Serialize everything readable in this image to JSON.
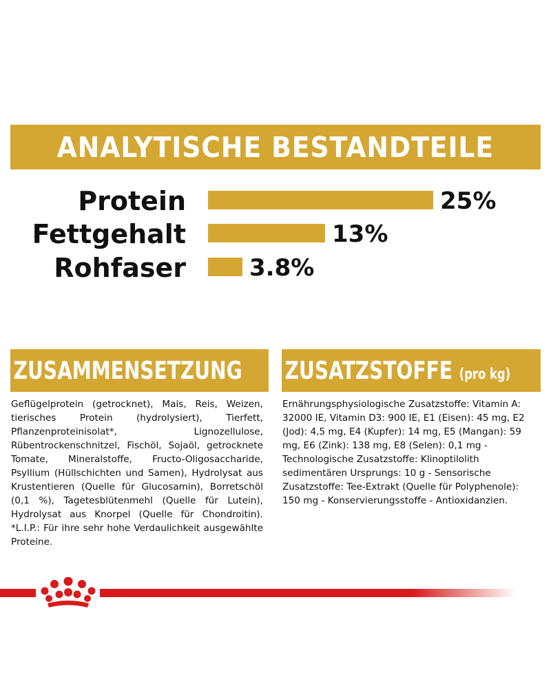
{
  "banner": {
    "title": "ANALYTISCHE BESTANDTEILE"
  },
  "chart_data": {
    "type": "bar",
    "orientation": "horizontal",
    "title": "ANALYTISCHE BESTANDTEILE",
    "categories": [
      "Protein",
      "Fettgehalt",
      "Rohfaser"
    ],
    "values": [
      25,
      13,
      3.8
    ],
    "value_labels": [
      "25%",
      "13%",
      "3.8%"
    ],
    "unit": "%",
    "xlim": [
      0,
      25
    ],
    "grid": false,
    "legend": "none",
    "bar_color": "#d4a733"
  },
  "composition": {
    "title": "ZUSAMMENSETZUNG",
    "text": "Geflügelprotein (getrocknet), Mais, Reis, Weizen, tierisches Protein (hydrolysiert), Tierfett, Pflanzenproteinisolat*, Lignozellulose, Rübentrockenschnitzel, Fischöl, Sojaöl, getrocknete Tomate, Mineralstoffe, Fructo-Oligosaccharide, Psyllium (Hüllschichten und Samen), Hydrolysat aus Krustentieren (Quelle für Glucosamin), Borretschöl (0,1 %), Tagetesblütenmehl (Quelle für Lutein), Hydrolysat aus Knorpel (Quelle für Chondroitin). *L.I.P.: Für ihre sehr hohe Verdaulichkeit ausgewählte Proteine."
  },
  "additives": {
    "title": "ZUSATZSTOFFE",
    "subtitle": "(pro kg)",
    "text": "Ernährungsphysiologische Zusatzstoffe: Vitamin A: 32000 IE, Vitamin D3: 900 IE, E1 (Eisen): 45 mg, E2 (Jod): 4,5 mg, E4 (Kupfer): 14 mg, E5 (Mangan): 59 mg, E6 (Zink): 138 mg, E8 (Selen): 0,1 mg - Technologische Zusatzstoffe: Klinoptilolith sedimentären Ursprungs: 10 g - Sensorische Zusatzstoffe: Tee-Extrakt (Quelle für Polyphenole): 150 mg - Konservierungsstoffe - Antioxidanzien."
  },
  "colors": {
    "gold": "#d4a733",
    "brand_red": "#d9191c"
  },
  "logo": {
    "icon": "crown-icon"
  }
}
